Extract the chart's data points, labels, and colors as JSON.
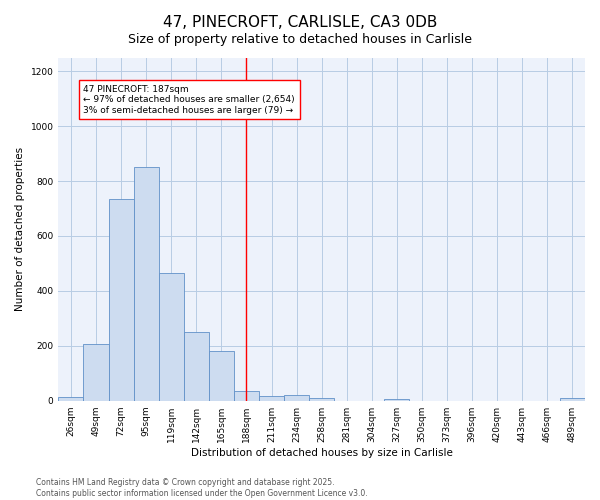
{
  "title1": "47, PINECROFT, CARLISLE, CA3 0DB",
  "title2": "Size of property relative to detached houses in Carlisle",
  "xlabel": "Distribution of detached houses by size in Carlisle",
  "ylabel": "Number of detached properties",
  "bin_labels": [
    "26sqm",
    "49sqm",
    "72sqm",
    "95sqm",
    "119sqm",
    "142sqm",
    "165sqm",
    "188sqm",
    "211sqm",
    "234sqm",
    "258sqm",
    "281sqm",
    "304sqm",
    "327sqm",
    "350sqm",
    "373sqm",
    "396sqm",
    "420sqm",
    "443sqm",
    "466sqm",
    "489sqm"
  ],
  "bin_values": [
    15,
    205,
    735,
    850,
    465,
    250,
    180,
    35,
    18,
    20,
    10,
    0,
    0,
    8,
    0,
    0,
    0,
    0,
    0,
    0,
    10
  ],
  "bar_color": "#cddcf0",
  "bar_edge_color": "#6090c8",
  "vline_color": "red",
  "vline_index": 7.5,
  "annotation_text": "47 PINECROFT: 187sqm\n← 97% of detached houses are smaller (2,654)\n3% of semi-detached houses are larger (79) →",
  "annotation_box_color": "white",
  "annotation_box_edge_color": "red",
  "ylim": [
    0,
    1250
  ],
  "yticks": [
    0,
    200,
    400,
    600,
    800,
    1000,
    1200
  ],
  "grid_color": "#b8cce4",
  "background_color": "#edf2fb",
  "footer_text": "Contains HM Land Registry data © Crown copyright and database right 2025.\nContains public sector information licensed under the Open Government Licence v3.0.",
  "title_fontsize": 11,
  "subtitle_fontsize": 9,
  "axis_label_fontsize": 7.5,
  "tick_fontsize": 6.5,
  "annotation_fontsize": 6.5,
  "footer_fontsize": 5.5
}
